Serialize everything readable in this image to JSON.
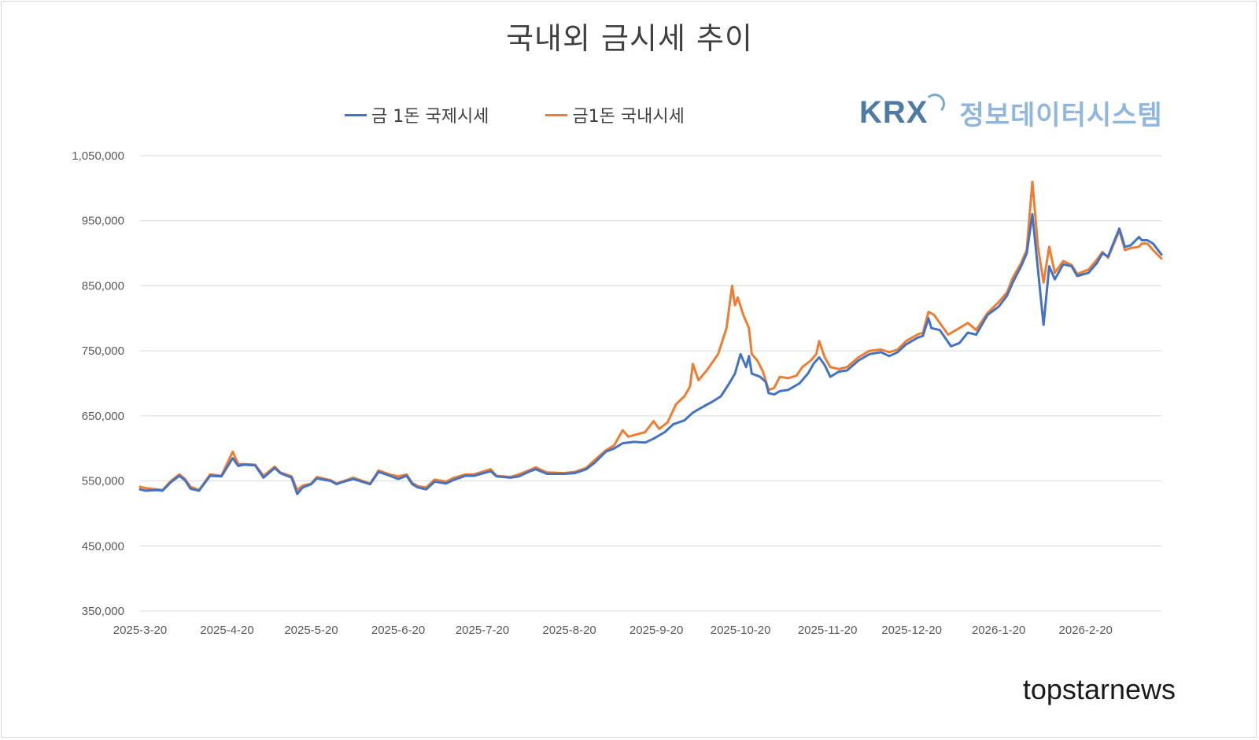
{
  "chart_title": "국내외 금시세 추이",
  "logo": {
    "mark": "KRX",
    "subtitle": "정보데이터시스템"
  },
  "watermark": "topstarnews",
  "colors": {
    "international": "#4472c4",
    "domestic": "#ed7d31",
    "grid": "#d9d9d9"
  },
  "chart_data": {
    "type": "line",
    "title": "국내외 금시세 추이",
    "xlabel": "",
    "ylabel": "",
    "ylim": [
      350000,
      1050000
    ],
    "yticks": [
      350000,
      450000,
      550000,
      650000,
      750000,
      850000,
      950000,
      1050000
    ],
    "ytick_labels": [
      "350,000",
      "450,000",
      "550,000",
      "650,000",
      "750,000",
      "850,000",
      "950,000",
      "1,050,000"
    ],
    "xticks": [
      "2025-3-20",
      "2025-4-20",
      "2025-5-20",
      "2025-6-20",
      "2025-7-20",
      "2025-8-20",
      "2025-9-20",
      "2025-10-20",
      "2025-11-20",
      "2025-12-20",
      "2026-1-20",
      "2026-2-20"
    ],
    "x_range": [
      "2025-03-20",
      "2026-03-16"
    ],
    "grid": true,
    "legend_position": "top",
    "series": [
      {
        "name": "금 1돈 국제시세",
        "color": "#4472c4",
        "points": [
          [
            "2025-03-20",
            537000
          ],
          [
            "2025-03-22",
            535000
          ],
          [
            "2025-03-26",
            536000
          ],
          [
            "2025-03-28",
            535000
          ],
          [
            "2025-03-31",
            548000
          ],
          [
            "2025-04-03",
            558000
          ],
          [
            "2025-04-05",
            551000
          ],
          [
            "2025-04-07",
            538000
          ],
          [
            "2025-04-10",
            535000
          ],
          [
            "2025-04-14",
            558000
          ],
          [
            "2025-04-18",
            557000
          ],
          [
            "2025-04-22",
            585000
          ],
          [
            "2025-04-24",
            573000
          ],
          [
            "2025-04-26",
            575000
          ],
          [
            "2025-04-30",
            574000
          ],
          [
            "2025-05-03",
            555000
          ],
          [
            "2025-05-07",
            570000
          ],
          [
            "2025-05-09",
            562000
          ],
          [
            "2025-05-13",
            555000
          ],
          [
            "2025-05-15",
            530000
          ],
          [
            "2025-05-17",
            540000
          ],
          [
            "2025-05-20",
            545000
          ],
          [
            "2025-05-22",
            554000
          ],
          [
            "2025-05-27",
            550000
          ],
          [
            "2025-05-29",
            545000
          ],
          [
            "2025-05-31",
            548000
          ],
          [
            "2025-06-04",
            553000
          ],
          [
            "2025-06-10",
            545000
          ],
          [
            "2025-06-13",
            564000
          ],
          [
            "2025-06-17",
            558000
          ],
          [
            "2025-06-20",
            553000
          ],
          [
            "2025-06-23",
            558000
          ],
          [
            "2025-06-25",
            545000
          ],
          [
            "2025-06-27",
            540000
          ],
          [
            "2025-06-30",
            537000
          ],
          [
            "2025-07-03",
            549000
          ],
          [
            "2025-07-07",
            546000
          ],
          [
            "2025-07-10",
            552000
          ],
          [
            "2025-07-14",
            558000
          ],
          [
            "2025-07-17",
            558000
          ],
          [
            "2025-07-23",
            565000
          ],
          [
            "2025-07-25",
            557000
          ],
          [
            "2025-07-30",
            555000
          ],
          [
            "2025-08-02",
            557000
          ],
          [
            "2025-08-06",
            565000
          ],
          [
            "2025-08-08",
            568000
          ],
          [
            "2025-08-12",
            561000
          ],
          [
            "2025-08-18",
            561000
          ],
          [
            "2025-08-22",
            562000
          ],
          [
            "2025-08-26",
            568000
          ],
          [
            "2025-08-29",
            578000
          ],
          [
            "2025-09-02",
            595000
          ],
          [
            "2025-09-05",
            600000
          ],
          [
            "2025-09-08",
            608000
          ],
          [
            "2025-09-12",
            610000
          ],
          [
            "2025-09-16",
            609000
          ],
          [
            "2025-09-19",
            615000
          ],
          [
            "2025-09-23",
            625000
          ],
          [
            "2025-09-26",
            637000
          ],
          [
            "2025-09-30",
            643000
          ],
          [
            "2025-10-03",
            655000
          ],
          [
            "2025-10-07",
            665000
          ],
          [
            "2025-10-10",
            672000
          ],
          [
            "2025-10-13",
            680000
          ],
          [
            "2025-10-16",
            700000
          ],
          [
            "2025-10-18",
            715000
          ],
          [
            "2025-10-20",
            745000
          ],
          [
            "2025-10-22",
            725000
          ],
          [
            "2025-10-23",
            742000
          ],
          [
            "2025-10-24",
            715000
          ],
          [
            "2025-10-27",
            710000
          ],
          [
            "2025-10-29",
            702000
          ],
          [
            "2025-10-30",
            685000
          ],
          [
            "2025-11-01",
            683000
          ],
          [
            "2025-11-03",
            688000
          ],
          [
            "2025-11-06",
            690000
          ],
          [
            "2025-11-10",
            700000
          ],
          [
            "2025-11-13",
            715000
          ],
          [
            "2025-11-15",
            730000
          ],
          [
            "2025-11-17",
            740000
          ],
          [
            "2025-11-19",
            728000
          ],
          [
            "2025-11-21",
            710000
          ],
          [
            "2025-11-24",
            718000
          ],
          [
            "2025-11-27",
            720000
          ],
          [
            "2025-12-01",
            735000
          ],
          [
            "2025-12-05",
            745000
          ],
          [
            "2025-12-09",
            748000
          ],
          [
            "2025-12-12",
            742000
          ],
          [
            "2025-12-15",
            748000
          ],
          [
            "2025-12-18",
            760000
          ],
          [
            "2025-12-22",
            770000
          ],
          [
            "2025-12-24",
            773000
          ],
          [
            "2025-12-26",
            800000
          ],
          [
            "2025-12-27",
            785000
          ],
          [
            "2025-12-30",
            782000
          ],
          [
            "2026-01-03",
            757000
          ],
          [
            "2026-01-06",
            762000
          ],
          [
            "2026-01-09",
            778000
          ],
          [
            "2026-01-12",
            775000
          ],
          [
            "2026-01-16",
            805000
          ],
          [
            "2026-01-20",
            818000
          ],
          [
            "2026-01-23",
            835000
          ],
          [
            "2026-01-25",
            855000
          ],
          [
            "2026-01-28",
            880000
          ],
          [
            "2026-01-30",
            900000
          ],
          [
            "2026-02-01",
            960000
          ],
          [
            "2026-02-03",
            875000
          ],
          [
            "2026-02-05",
            790000
          ],
          [
            "2026-02-07",
            880000
          ],
          [
            "2026-02-09",
            860000
          ],
          [
            "2026-02-12",
            883000
          ],
          [
            "2026-02-15",
            880000
          ],
          [
            "2026-02-17",
            865000
          ],
          [
            "2026-02-21",
            870000
          ],
          [
            "2026-02-24",
            885000
          ],
          [
            "2026-02-26",
            900000
          ],
          [
            "2026-02-28",
            895000
          ],
          [
            "2026-03-04",
            938000
          ],
          [
            "2026-03-06",
            910000
          ],
          [
            "2026-03-08",
            912000
          ],
          [
            "2026-03-11",
            925000
          ],
          [
            "2026-03-12",
            920000
          ],
          [
            "2026-03-14",
            920000
          ],
          [
            "2026-03-16",
            915000
          ],
          [
            "2026-03-19",
            898000
          ]
        ]
      },
      {
        "name": "금1돈 국내시세",
        "color": "#ed7d31",
        "points": [
          [
            "2025-03-20",
            541000
          ],
          [
            "2025-03-22",
            539000
          ],
          [
            "2025-03-26",
            537000
          ],
          [
            "2025-03-28",
            536000
          ],
          [
            "2025-03-31",
            550000
          ],
          [
            "2025-04-03",
            560000
          ],
          [
            "2025-04-05",
            553000
          ],
          [
            "2025-04-07",
            541000
          ],
          [
            "2025-04-10",
            536000
          ],
          [
            "2025-04-14",
            560000
          ],
          [
            "2025-04-18",
            558000
          ],
          [
            "2025-04-22",
            595000
          ],
          [
            "2025-04-24",
            576000
          ],
          [
            "2025-04-26",
            576000
          ],
          [
            "2025-04-30",
            575000
          ],
          [
            "2025-05-03",
            558000
          ],
          [
            "2025-05-07",
            572000
          ],
          [
            "2025-05-09",
            563000
          ],
          [
            "2025-05-13",
            557000
          ],
          [
            "2025-05-15",
            536000
          ],
          [
            "2025-05-17",
            543000
          ],
          [
            "2025-05-20",
            546000
          ],
          [
            "2025-05-22",
            556000
          ],
          [
            "2025-05-27",
            551000
          ],
          [
            "2025-05-29",
            546000
          ],
          [
            "2025-05-31",
            549000
          ],
          [
            "2025-06-04",
            555000
          ],
          [
            "2025-06-10",
            546000
          ],
          [
            "2025-06-13",
            566000
          ],
          [
            "2025-06-17",
            560000
          ],
          [
            "2025-06-20",
            557000
          ],
          [
            "2025-06-23",
            560000
          ],
          [
            "2025-06-25",
            547000
          ],
          [
            "2025-06-27",
            542000
          ],
          [
            "2025-06-30",
            540000
          ],
          [
            "2025-07-03",
            552000
          ],
          [
            "2025-07-07",
            549000
          ],
          [
            "2025-07-10",
            555000
          ],
          [
            "2025-07-14",
            560000
          ],
          [
            "2025-07-17",
            560000
          ],
          [
            "2025-07-23",
            568000
          ],
          [
            "2025-07-25",
            558000
          ],
          [
            "2025-07-30",
            556000
          ],
          [
            "2025-08-02",
            560000
          ],
          [
            "2025-08-06",
            567000
          ],
          [
            "2025-08-08",
            571000
          ],
          [
            "2025-08-12",
            563000
          ],
          [
            "2025-08-18",
            562000
          ],
          [
            "2025-08-22",
            564000
          ],
          [
            "2025-08-26",
            570000
          ],
          [
            "2025-08-29",
            582000
          ],
          [
            "2025-09-02",
            597000
          ],
          [
            "2025-09-05",
            605000
          ],
          [
            "2025-09-08",
            628000
          ],
          [
            "2025-09-10",
            618000
          ],
          [
            "2025-09-16",
            625000
          ],
          [
            "2025-09-19",
            642000
          ],
          [
            "2025-09-21",
            630000
          ],
          [
            "2025-09-24",
            640000
          ],
          [
            "2025-09-27",
            668000
          ],
          [
            "2025-09-30",
            680000
          ],
          [
            "2025-10-02",
            695000
          ],
          [
            "2025-10-03",
            730000
          ],
          [
            "2025-10-05",
            705000
          ],
          [
            "2025-10-08",
            720000
          ],
          [
            "2025-10-12",
            745000
          ],
          [
            "2025-10-15",
            785000
          ],
          [
            "2025-10-17",
            850000
          ],
          [
            "2025-10-18",
            820000
          ],
          [
            "2025-10-19",
            832000
          ],
          [
            "2025-10-21",
            805000
          ],
          [
            "2025-10-23",
            785000
          ],
          [
            "2025-10-24",
            745000
          ],
          [
            "2025-10-26",
            735000
          ],
          [
            "2025-10-28",
            718000
          ],
          [
            "2025-10-30",
            690000
          ],
          [
            "2025-11-01",
            693000
          ],
          [
            "2025-11-03",
            710000
          ],
          [
            "2025-11-06",
            708000
          ],
          [
            "2025-11-09",
            712000
          ],
          [
            "2025-11-11",
            725000
          ],
          [
            "2025-11-14",
            735000
          ],
          [
            "2025-11-16",
            745000
          ],
          [
            "2025-11-17",
            765000
          ],
          [
            "2025-11-19",
            740000
          ],
          [
            "2025-11-21",
            725000
          ],
          [
            "2025-11-24",
            722000
          ],
          [
            "2025-11-27",
            725000
          ],
          [
            "2025-12-01",
            740000
          ],
          [
            "2025-12-05",
            750000
          ],
          [
            "2025-12-09",
            752000
          ],
          [
            "2025-12-12",
            748000
          ],
          [
            "2025-12-15",
            752000
          ],
          [
            "2025-12-18",
            765000
          ],
          [
            "2025-12-22",
            775000
          ],
          [
            "2025-12-24",
            778000
          ],
          [
            "2025-12-26",
            810000
          ],
          [
            "2025-12-28",
            805000
          ],
          [
            "2025-12-30",
            793000
          ],
          [
            "2026-01-02",
            775000
          ],
          [
            "2026-01-06",
            785000
          ],
          [
            "2026-01-09",
            793000
          ],
          [
            "2026-01-12",
            782000
          ],
          [
            "2026-01-16",
            808000
          ],
          [
            "2026-01-20",
            825000
          ],
          [
            "2026-01-23",
            840000
          ],
          [
            "2026-01-25",
            862000
          ],
          [
            "2026-01-28",
            885000
          ],
          [
            "2026-01-30",
            905000
          ],
          [
            "2026-02-01",
            1010000
          ],
          [
            "2026-02-03",
            910000
          ],
          [
            "2026-02-05",
            855000
          ],
          [
            "2026-02-07",
            910000
          ],
          [
            "2026-02-09",
            870000
          ],
          [
            "2026-02-12",
            888000
          ],
          [
            "2026-02-15",
            882000
          ],
          [
            "2026-02-17",
            868000
          ],
          [
            "2026-02-21",
            875000
          ],
          [
            "2026-02-24",
            890000
          ],
          [
            "2026-02-26",
            902000
          ],
          [
            "2026-02-28",
            893000
          ],
          [
            "2026-03-04",
            935000
          ],
          [
            "2026-03-06",
            905000
          ],
          [
            "2026-03-08",
            908000
          ],
          [
            "2026-03-11",
            910000
          ],
          [
            "2026-03-12",
            915000
          ],
          [
            "2026-03-14",
            915000
          ],
          [
            "2026-03-16",
            905000
          ],
          [
            "2026-03-19",
            892000
          ]
        ]
      }
    ]
  }
}
